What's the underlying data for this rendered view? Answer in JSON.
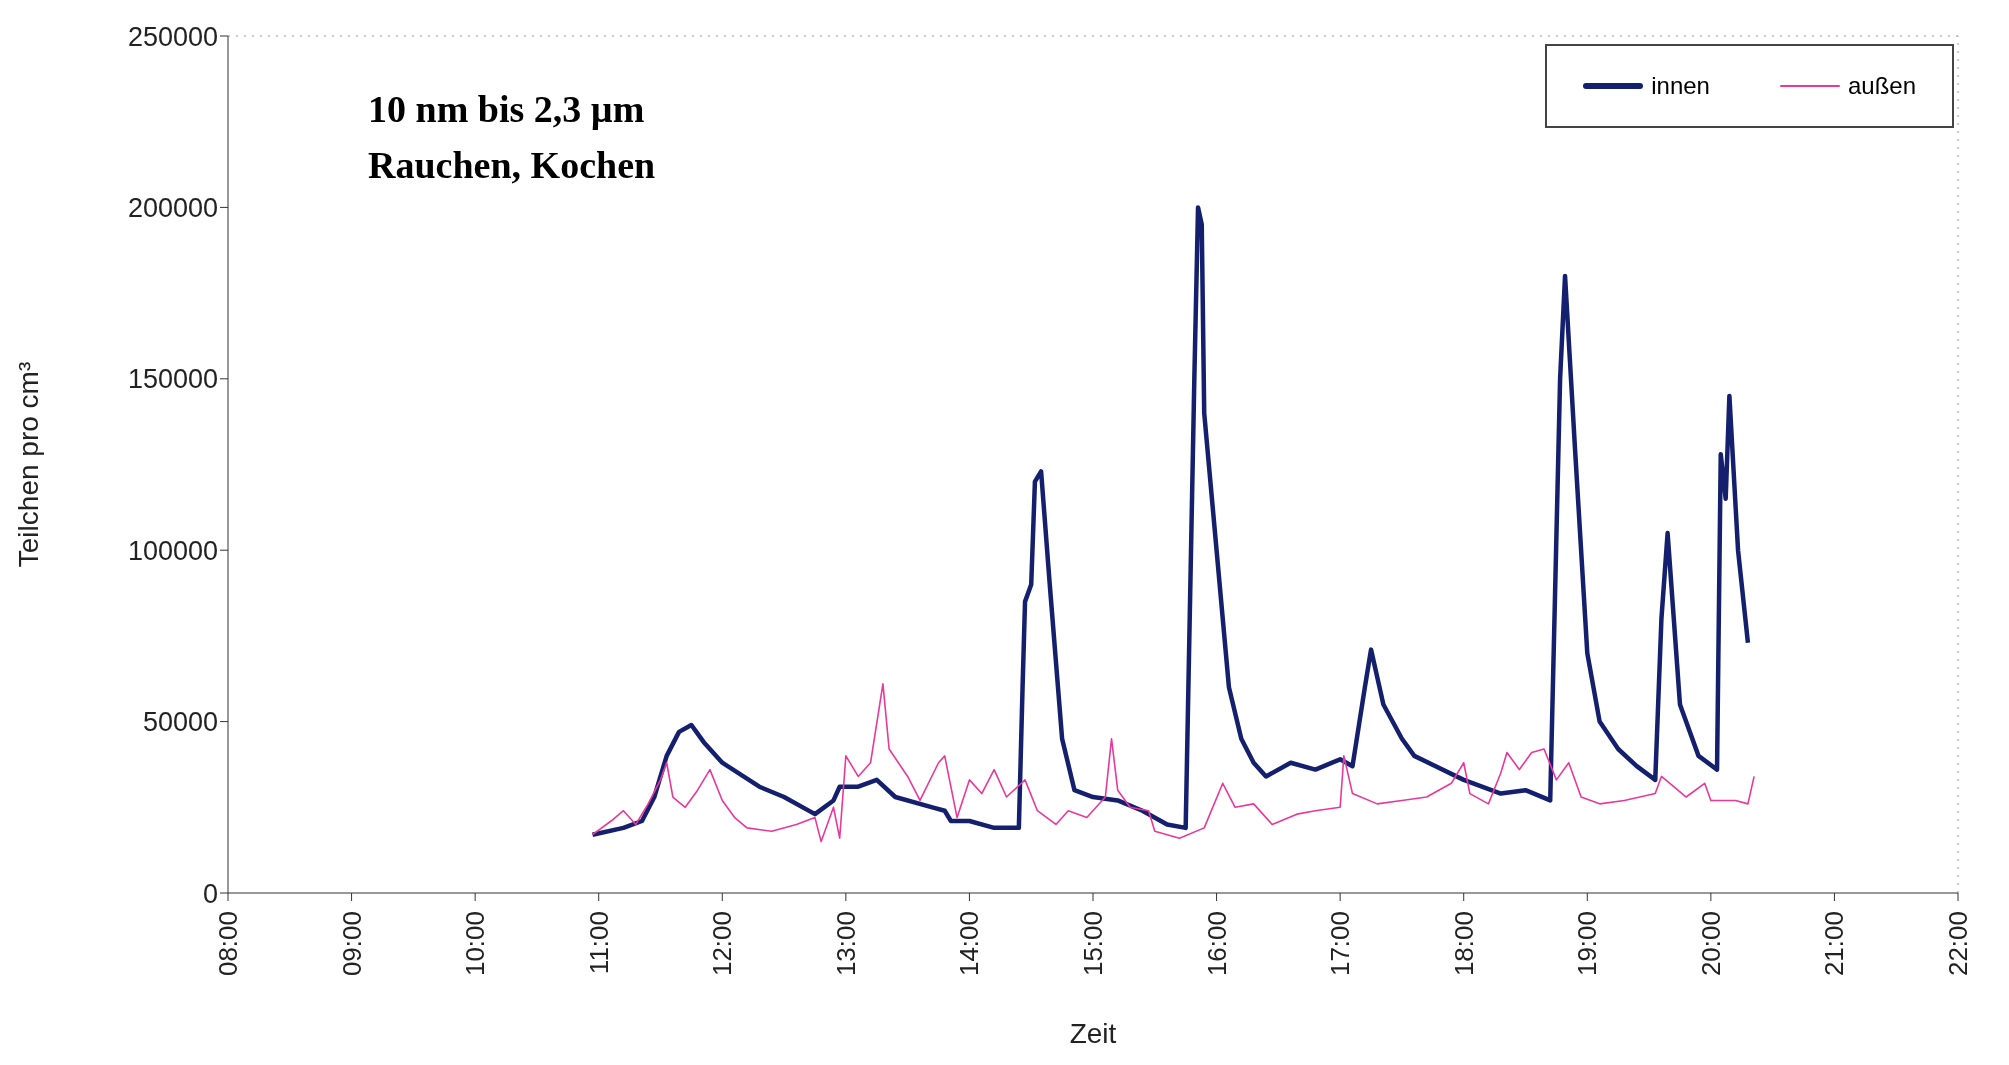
{
  "chart_data": {
    "type": "line",
    "xlabel": "Zeit",
    "ylabel": "Teilchen pro cm³",
    "annotations": [
      "10 nm bis 2,3 µm",
      "Rauchen, Kochen"
    ],
    "xlim": [
      8,
      22
    ],
    "xticks": [
      {
        "value": 8,
        "label": "08:00"
      },
      {
        "value": 9,
        "label": "09:00"
      },
      {
        "value": 10,
        "label": "10:00"
      },
      {
        "value": 11,
        "label": "11:00"
      },
      {
        "value": 12,
        "label": "12:00"
      },
      {
        "value": 13,
        "label": "13:00"
      },
      {
        "value": 14,
        "label": "14:00"
      },
      {
        "value": 15,
        "label": "15:00"
      },
      {
        "value": 16,
        "label": "16:00"
      },
      {
        "value": 17,
        "label": "17:00"
      },
      {
        "value": 18,
        "label": "18:00"
      },
      {
        "value": 19,
        "label": "19:00"
      },
      {
        "value": 20,
        "label": "20:00"
      },
      {
        "value": 21,
        "label": "21:00"
      },
      {
        "value": 22,
        "label": "22:00"
      }
    ],
    "ylim": [
      0,
      250000
    ],
    "yticks": [
      0,
      50000,
      100000,
      150000,
      200000,
      250000
    ],
    "grid": false,
    "legend": "top right",
    "marker": "none",
    "series": [
      {
        "name": "innen",
        "color": "#14206e",
        "x": [
          10.95,
          11.2,
          11.35,
          11.45,
          11.55,
          11.65,
          11.75,
          11.85,
          12.0,
          12.3,
          12.5,
          12.75,
          12.9,
          12.95,
          13.1,
          13.25,
          13.4,
          13.7,
          13.8,
          13.85,
          14.0,
          14.2,
          14.4,
          14.43,
          14.45,
          14.5,
          14.53,
          14.58,
          14.65,
          14.75,
          14.85,
          15.0,
          15.2,
          15.4,
          15.6,
          15.75,
          15.82,
          15.85,
          15.88,
          15.9,
          16.0,
          16.1,
          16.2,
          16.3,
          16.4,
          16.6,
          16.8,
          17.0,
          17.1,
          17.2,
          17.25,
          17.35,
          17.5,
          17.6,
          18.0,
          18.3,
          18.5,
          18.7,
          18.78,
          18.82,
          18.86,
          18.9,
          19.0,
          19.1,
          19.25,
          19.4,
          19.55,
          19.6,
          19.65,
          19.7,
          19.75,
          19.9,
          20.05,
          20.08,
          20.12,
          20.15,
          20.22,
          20.3
        ],
        "values": [
          17000,
          19000,
          21000,
          28000,
          40000,
          47000,
          49000,
          44000,
          38000,
          31000,
          28000,
          23000,
          27000,
          31000,
          31000,
          33000,
          28000,
          25000,
          24000,
          21000,
          21000,
          19000,
          19000,
          60000,
          85000,
          90000,
          120000,
          123000,
          90000,
          45000,
          30000,
          28000,
          27000,
          24000,
          20000,
          19000,
          150000,
          200000,
          195000,
          140000,
          100000,
          60000,
          45000,
          38000,
          34000,
          38000,
          36000,
          39000,
          37000,
          60000,
          71000,
          55000,
          45000,
          40000,
          33000,
          29000,
          30000,
          27000,
          150000,
          180000,
          155000,
          130000,
          70000,
          50000,
          42000,
          37000,
          33000,
          80000,
          105000,
          80000,
          55000,
          40000,
          36000,
          128000,
          115000,
          145000,
          100000,
          73000
        ]
      },
      {
        "name": "außen",
        "color": "#e8399a",
        "x": [
          10.95,
          11.1,
          11.2,
          11.3,
          11.4,
          11.5,
          11.55,
          11.6,
          11.7,
          11.8,
          11.9,
          12.0,
          12.1,
          12.2,
          12.4,
          12.6,
          12.75,
          12.8,
          12.9,
          12.95,
          13.0,
          13.1,
          13.2,
          13.3,
          13.35,
          13.5,
          13.6,
          13.75,
          13.8,
          13.9,
          14.0,
          14.1,
          14.2,
          14.3,
          14.45,
          14.55,
          14.7,
          14.8,
          14.95,
          15.1,
          15.15,
          15.2,
          15.3,
          15.45,
          15.5,
          15.7,
          15.9,
          16.05,
          16.15,
          16.3,
          16.45,
          16.65,
          16.8,
          17.0,
          17.03,
          17.1,
          17.3,
          17.5,
          17.7,
          17.9,
          18.0,
          18.05,
          18.2,
          18.3,
          18.35,
          18.45,
          18.55,
          18.65,
          18.75,
          18.85,
          18.95,
          19.1,
          19.3,
          19.55,
          19.6,
          19.7,
          19.8,
          19.95,
          20.0,
          20.2,
          20.3,
          20.35
        ],
        "values": [
          17000,
          21000,
          24000,
          20000,
          26000,
          33000,
          38000,
          28000,
          25000,
          30000,
          36000,
          27000,
          22000,
          19000,
          18000,
          20000,
          22000,
          15000,
          25000,
          16000,
          40000,
          34000,
          38000,
          61000,
          42000,
          34000,
          27000,
          38000,
          40000,
          22000,
          33000,
          29000,
          36000,
          28000,
          33000,
          24000,
          20000,
          24000,
          22000,
          28000,
          45000,
          30000,
          25000,
          24000,
          18000,
          16000,
          19000,
          32000,
          25000,
          26000,
          20000,
          23000,
          24000,
          25000,
          40000,
          29000,
          26000,
          27000,
          28000,
          32000,
          38000,
          29000,
          26000,
          35000,
          41000,
          36000,
          41000,
          42000,
          33000,
          38000,
          28000,
          26000,
          27000,
          29000,
          34000,
          31000,
          28000,
          32000,
          27000,
          27000,
          26000,
          34000
        ]
      }
    ]
  }
}
